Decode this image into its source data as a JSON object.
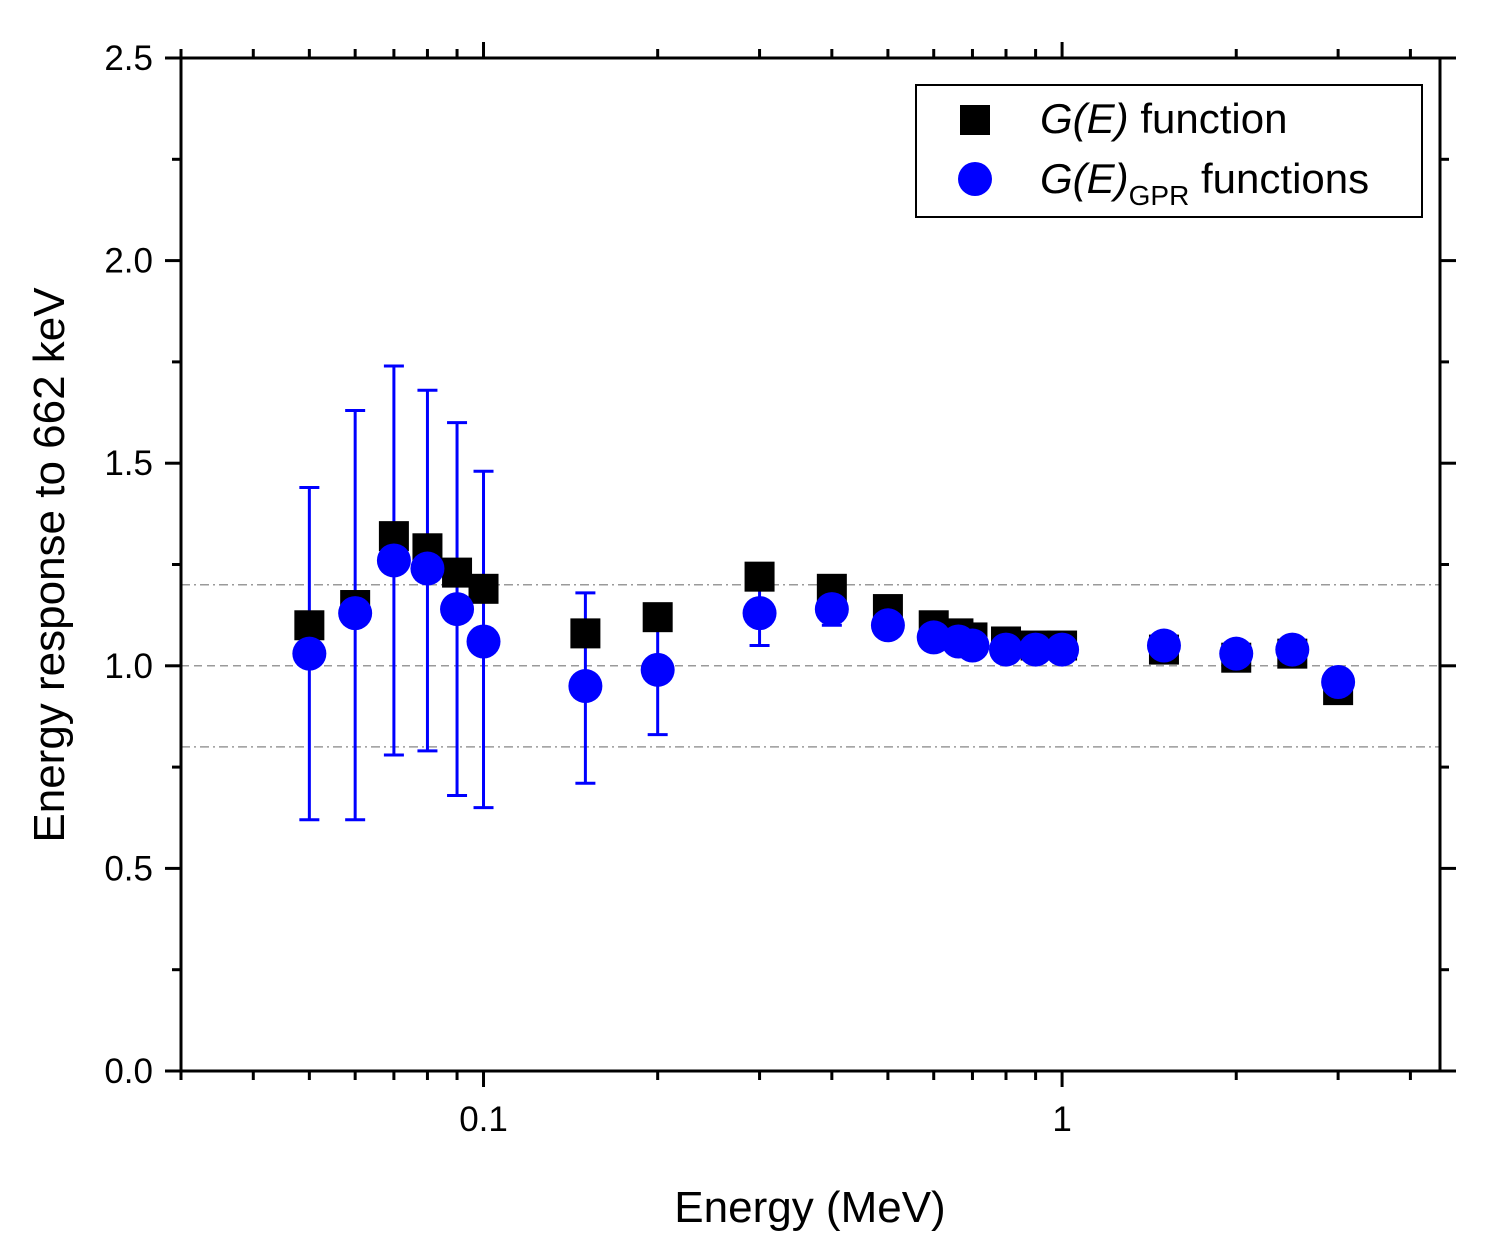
{
  "chart_data": {
    "type": "scatter",
    "title": "",
    "xlabel": "Energy (MeV)",
    "ylabel": "Energy response to 662 keV",
    "xscale": "log",
    "xlim": [
      0.03,
      4.5
    ],
    "ylim": [
      0.0,
      2.5
    ],
    "x_tick_labels": [
      {
        "value": 0.1,
        "label": "0.1"
      },
      {
        "value": 1,
        "label": "1"
      }
    ],
    "y_tick_labels": [
      {
        "value": 0.0,
        "label": "0.0"
      },
      {
        "value": 0.5,
        "label": "0.5"
      },
      {
        "value": 1.0,
        "label": "1.0"
      },
      {
        "value": 1.5,
        "label": "1.5"
      },
      {
        "value": 2.0,
        "label": "2.0"
      },
      {
        "value": 2.5,
        "label": "2.5"
      }
    ],
    "reference_lines": [
      {
        "y": 1.2,
        "style": "dash-dot"
      },
      {
        "y": 1.0,
        "style": "dashed"
      },
      {
        "y": 0.8,
        "style": "dash-dot"
      }
    ],
    "legend": {
      "position": "top-right",
      "entries": [
        {
          "italic": "G(E)",
          "text": " function",
          "sub": "",
          "marker": "square",
          "color": "#000000"
        },
        {
          "italic": "G(E)",
          "text": " functions",
          "sub": "GPR",
          "marker": "circle",
          "color": "#0000FF"
        }
      ]
    },
    "series": [
      {
        "name": "G(E) function",
        "marker": "square",
        "color": "#000000",
        "x": [
          0.05,
          0.06,
          0.07,
          0.08,
          0.09,
          0.1,
          0.15,
          0.2,
          0.3,
          0.4,
          0.5,
          0.6,
          0.662,
          0.7,
          0.8,
          0.9,
          1.0,
          1.5,
          2.0,
          2.5,
          3.0
        ],
        "y": [
          1.1,
          1.15,
          1.32,
          1.29,
          1.23,
          1.19,
          1.08,
          1.12,
          1.22,
          1.19,
          1.14,
          1.1,
          1.08,
          1.07,
          1.06,
          1.05,
          1.05,
          1.04,
          1.02,
          1.03,
          0.94
        ]
      },
      {
        "name": "G(E)GPR functions",
        "marker": "circle",
        "color": "#0000FF",
        "x": [
          0.05,
          0.06,
          0.07,
          0.08,
          0.09,
          0.1,
          0.15,
          0.2,
          0.3,
          0.4,
          0.5,
          0.6,
          0.662,
          0.7,
          0.8,
          0.9,
          1.0,
          1.5,
          2.0,
          2.5,
          3.0
        ],
        "y": [
          1.03,
          1.13,
          1.26,
          1.24,
          1.14,
          1.06,
          0.95,
          0.99,
          1.13,
          1.14,
          1.1,
          1.07,
          1.06,
          1.05,
          1.04,
          1.04,
          1.04,
          1.05,
          1.03,
          1.04,
          0.96
        ],
        "error_low": [
          0.62,
          0.62,
          0.78,
          0.79,
          0.68,
          0.65,
          0.71,
          0.83,
          1.05,
          1.1,
          1.08,
          1.06,
          1.05,
          1.04,
          1.03,
          1.03,
          1.03,
          1.04,
          1.02,
          1.03,
          0.95
        ],
        "error_high": [
          1.44,
          1.63,
          1.74,
          1.68,
          1.6,
          1.48,
          1.18,
          1.15,
          1.2,
          1.17,
          1.12,
          1.09,
          1.07,
          1.06,
          1.05,
          1.05,
          1.05,
          1.06,
          1.04,
          1.05,
          0.97
        ]
      }
    ]
  }
}
